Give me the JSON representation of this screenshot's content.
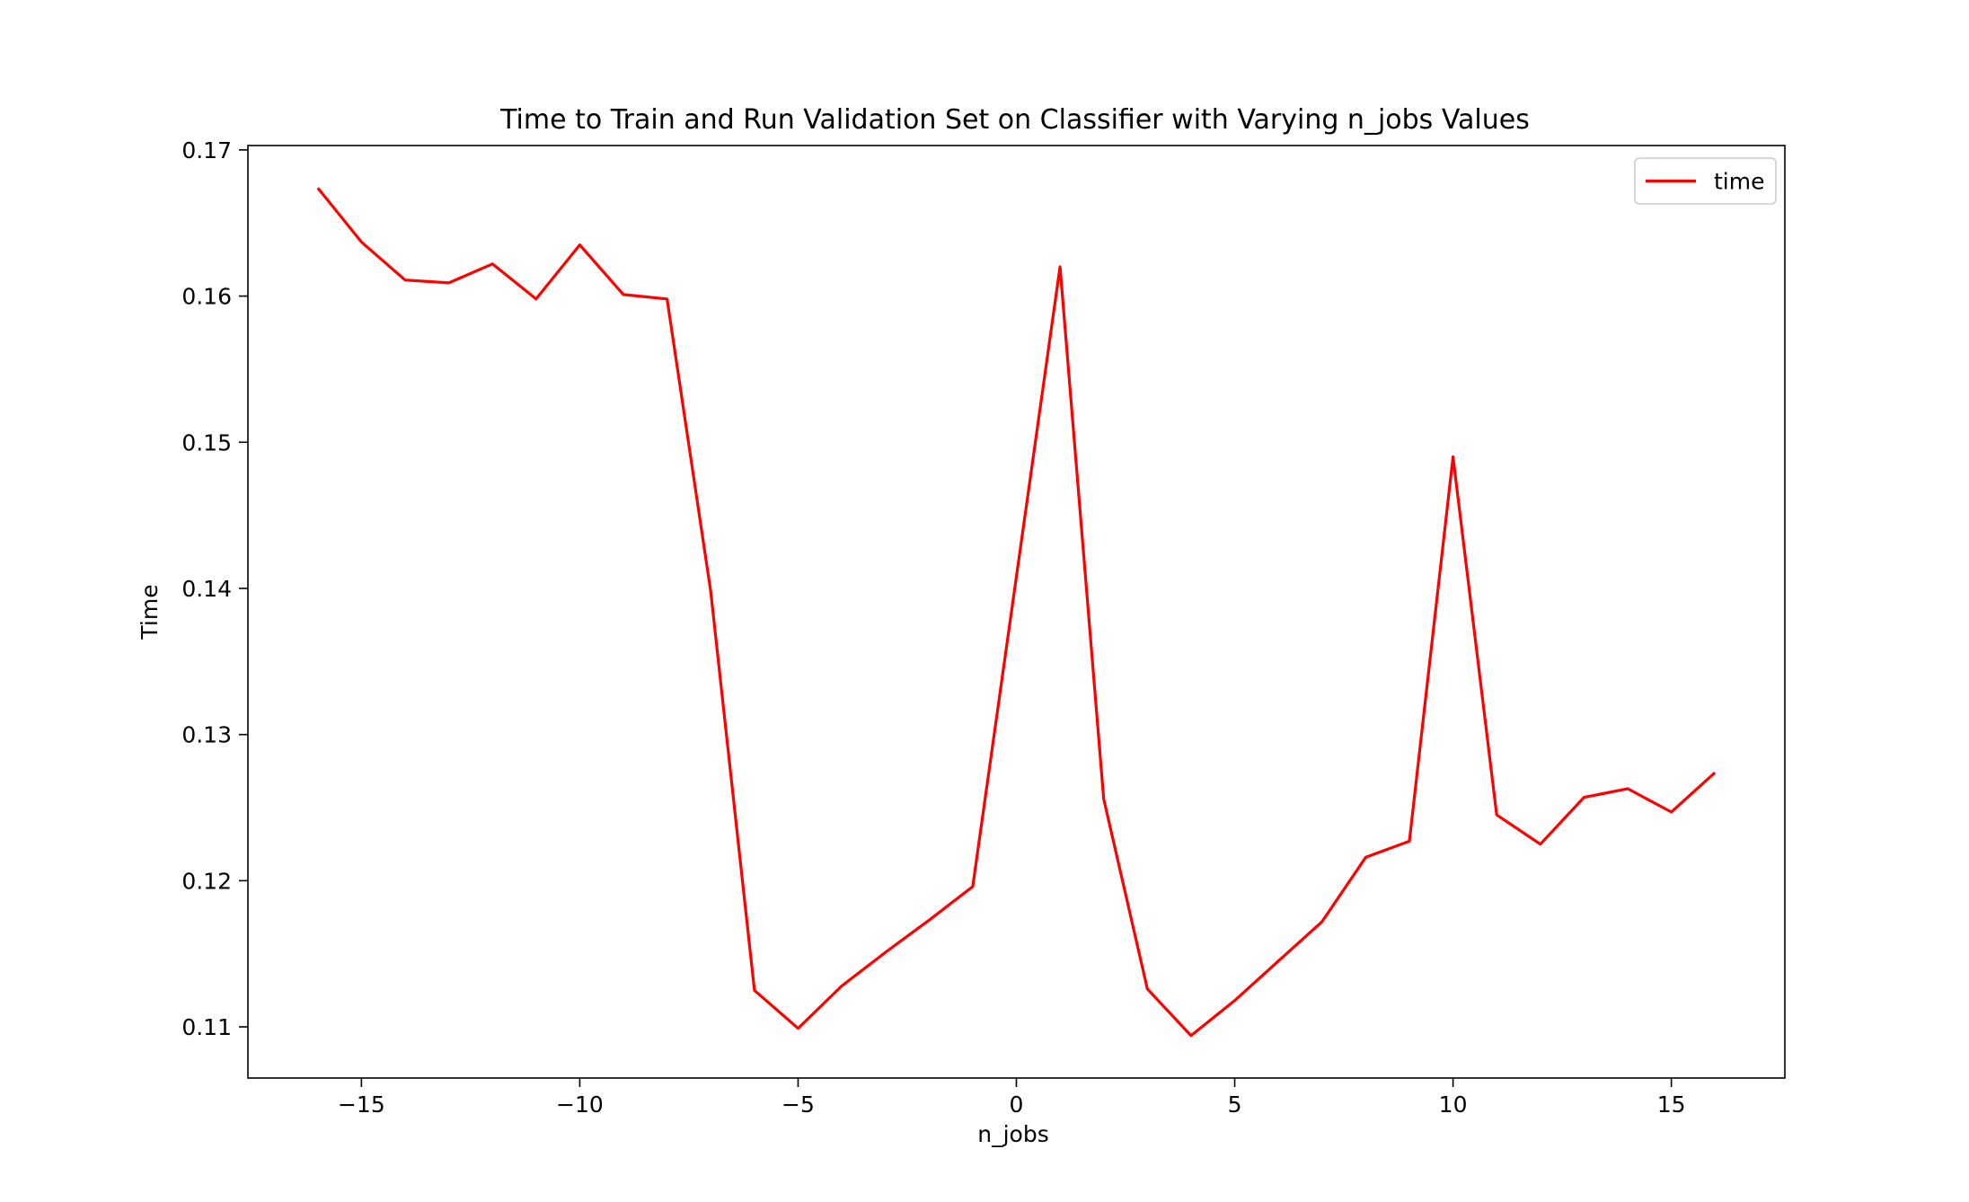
{
  "chart_data": {
    "type": "line",
    "title": "Time to Train and Run Validation Set on Classifier with Varying n_jobs Values",
    "xlabel": "n_jobs",
    "ylabel": "Time",
    "xlim": [
      -17.6,
      17.6
    ],
    "ylim": [
      0.1065,
      0.1703
    ],
    "xticks": [
      -15,
      -10,
      -5,
      0,
      5,
      10,
      15
    ],
    "xtick_labels": [
      "−15",
      "−10",
      "−5",
      "0",
      "5",
      "10",
      "15"
    ],
    "yticks": [
      0.11,
      0.12,
      0.13,
      0.14,
      0.15,
      0.16,
      0.17
    ],
    "ytick_labels": [
      "0.11",
      "0.12",
      "0.13",
      "0.14",
      "0.15",
      "0.16",
      "0.17"
    ],
    "grid": false,
    "legend_position": "top-right",
    "series": [
      {
        "name": "time",
        "color": "#ff0000",
        "x": [
          -16,
          -15,
          -14,
          -13,
          -12,
          -11,
          -10,
          -9,
          -8,
          -7,
          -6,
          -5,
          -4,
          -3,
          -2,
          -1,
          0,
          1,
          2,
          3,
          4,
          5,
          6,
          7,
          8,
          9,
          10,
          11,
          12,
          13,
          14,
          15,
          16
        ],
        "y": [
          0.1674,
          0.1637,
          0.1611,
          0.1609,
          0.1622,
          0.1598,
          0.1635,
          0.1601,
          0.1598,
          0.1398,
          0.1125,
          0.1099,
          0.1128,
          0.1151,
          0.1173,
          0.1196,
          0.1408,
          0.162,
          0.1256,
          0.1126,
          0.1094,
          0.1118,
          0.1145,
          0.1172,
          0.1216,
          0.1227,
          0.149,
          0.1245,
          0.1225,
          0.1257,
          0.1263,
          0.1247,
          0.1274
        ]
      }
    ]
  }
}
